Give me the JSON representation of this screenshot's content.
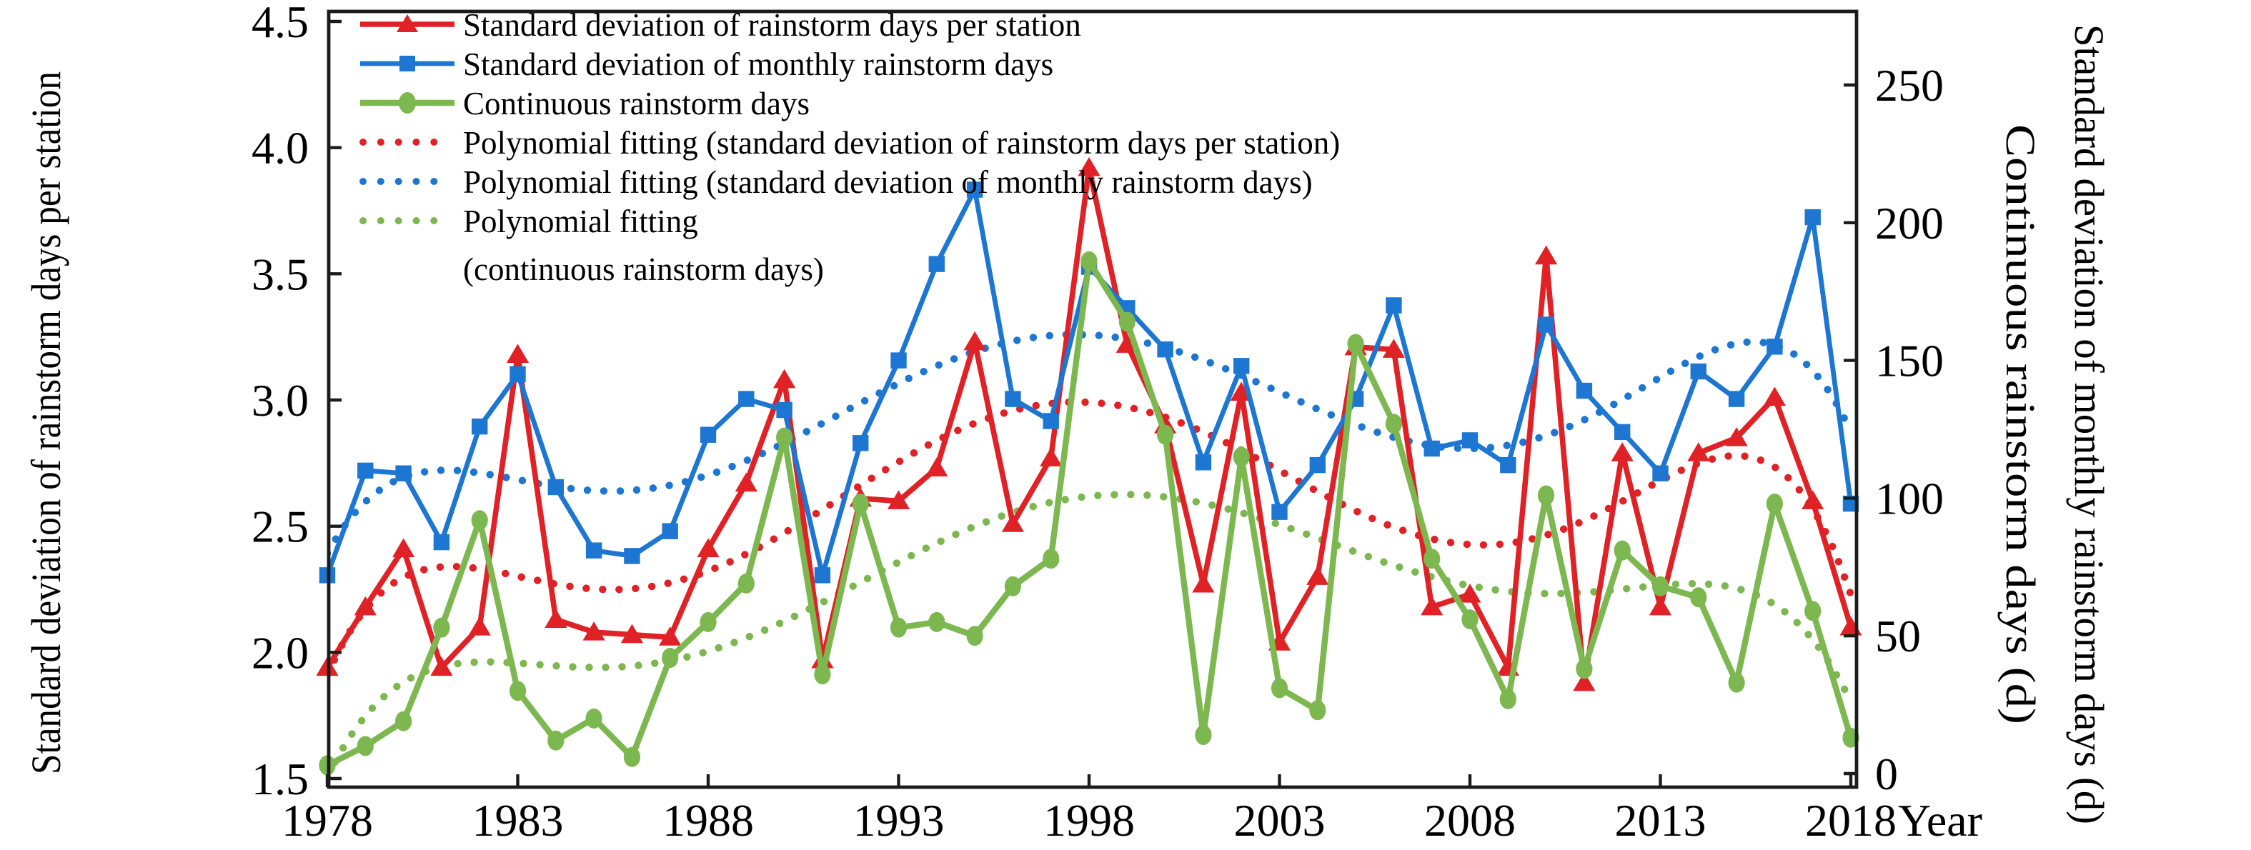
{
  "figure": {
    "left_axis": {
      "title": "Standard deviation of rainstorm days per station",
      "min": 1.5,
      "max": 4.5,
      "ticks": [
        "1.5",
        "2.0",
        "2.5",
        "3.0",
        "3.5",
        "4.0",
        "4.5"
      ]
    },
    "right_axis": {
      "titles": [
        "Continuous rainstorm days (d)",
        "Standard deviation of monthly rainstorm days (d)"
      ],
      "min": 0,
      "max": 250,
      "ticks": [
        "0",
        "50",
        "100",
        "150",
        "200",
        "250"
      ]
    },
    "x_axis": {
      "title": "Year",
      "ticks": [
        "1978",
        "1983",
        "1988",
        "1993",
        "1998",
        "2003",
        "2008",
        "2013",
        "2018"
      ]
    },
    "colors": {
      "red": "#e02125",
      "blue": "#1d76d2",
      "green": "#7cb750",
      "frame": "#1b1b1b"
    }
  },
  "legend": {
    "entries": [
      {
        "label": "Standard deviation of rainstorm days per station",
        "swatch": "red-solid-triangle"
      },
      {
        "label": "Standard deviation of monthly rainstorm days",
        "swatch": "blue-solid-square"
      },
      {
        "label": "Continuous rainstorm days",
        "swatch": "green-solid-circle"
      },
      {
        "label": "Polynomial fitting (standard deviation of rainstorm days per station)",
        "swatch": "red-dotted"
      },
      {
        "label": "Polynomial fitting (standard deviation of monthly rainstorm days)",
        "swatch": "blue-dotted"
      },
      {
        "label": "Polynomial fitting",
        "swatch": "green-dotted"
      }
    ],
    "wrap_line": "(continuous rainstorm days)"
  },
  "chart_data": {
    "type": "line",
    "title": "",
    "x_label": "Year",
    "x": [
      1978,
      1979,
      1980,
      1981,
      1982,
      1983,
      1984,
      1985,
      1986,
      1987,
      1988,
      1989,
      1990,
      1991,
      1992,
      1993,
      1994,
      1995,
      1996,
      1997,
      1998,
      1999,
      2000,
      2001,
      2002,
      2003,
      2004,
      2005,
      2006,
      2007,
      2008,
      2009,
      2010,
      2011,
      2012,
      2013,
      2014,
      2015,
      2016,
      2017,
      2018
    ],
    "left_axis_range": [
      1.5,
      4.5
    ],
    "right_axis_range": [
      0,
      250
    ],
    "grid": "off",
    "legend_position": "upper-left-inside",
    "series": [
      {
        "name": "Standard deviation of rainstorm days per station",
        "axis": "left",
        "units": "",
        "marker": "triangle",
        "color_key": "red",
        "values": [
          1.94,
          2.18,
          2.41,
          1.94,
          2.1,
          3.18,
          2.13,
          2.08,
          2.07,
          2.06,
          2.41,
          2.67,
          3.08,
          1.97,
          2.61,
          2.6,
          2.73,
          3.23,
          2.51,
          2.77,
          3.92,
          3.22,
          2.9,
          2.27,
          3.03,
          2.04,
          2.3,
          3.21,
          3.2,
          2.18,
          2.23,
          1.94,
          3.57,
          1.88,
          2.79,
          2.18,
          2.79,
          2.85,
          3.01,
          2.6,
          2.1
        ]
      },
      {
        "name": "Standard deviation of monthly rainstorm days",
        "axis": "right",
        "units": "d",
        "marker": "square",
        "color_key": "blue",
        "values": [
          72,
          110,
          109,
          84,
          126,
          145,
          104,
          81,
          79,
          88,
          123,
          136,
          132,
          72,
          120,
          150,
          185,
          212,
          136,
          128,
          184,
          169,
          154,
          113,
          148,
          95,
          112,
          136,
          170,
          118,
          121,
          112,
          163,
          139,
          124,
          109,
          146,
          136,
          155,
          202,
          98
        ]
      },
      {
        "name": "Continuous rainstorm days",
        "axis": "right",
        "units": "d",
        "marker": "circle",
        "color_key": "green",
        "values": [
          3,
          10,
          19,
          53,
          92,
          30,
          12,
          20,
          6,
          42,
          55,
          69,
          122,
          36,
          98,
          53,
          55,
          50,
          68,
          78,
          186,
          164,
          123,
          14,
          115,
          31,
          23,
          156,
          127,
          78,
          56,
          27,
          101,
          38,
          81,
          68,
          64,
          33,
          98,
          59,
          13
        ]
      }
    ],
    "fits": [
      {
        "name": "Polynomial fitting (standard deviation of rainstorm days per station)",
        "series_index": 0,
        "degree": 6,
        "style": "dotted"
      },
      {
        "name": "Polynomial fitting (standard deviation of monthly rainstorm days)",
        "series_index": 1,
        "degree": 6,
        "style": "dotted"
      },
      {
        "name": "Polynomial fitting (continuous rainstorm days)",
        "series_index": 2,
        "degree": 6,
        "style": "dotted"
      }
    ]
  }
}
